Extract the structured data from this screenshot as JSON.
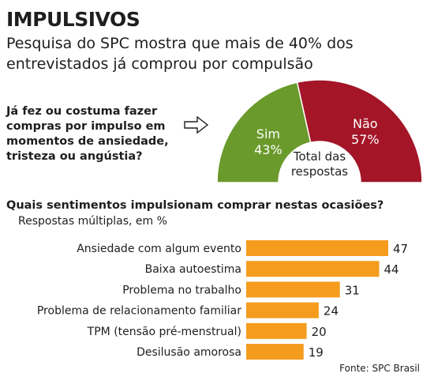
{
  "title": "IMPULSIVOS",
  "subtitle": "Pesquisa do SPC mostra que mais de 40% dos entrevistados já comprou por compulsão",
  "question1": "Já fez ou costuma fazer compras por impulso em momentos de ansiedade, tristeza ou angústia?",
  "question2": "Quais sentimentos impulsionam comprar nestas ocasiões?",
  "question2_note": "Respostas múltiplas, em %",
  "source": "Fonte: SPC Brasil",
  "colors": {
    "sim": "#6b9a2c",
    "nao": "#a31527",
    "bar": "#f59c1e"
  },
  "chart_data": [
    {
      "type": "pie",
      "style": "half-donut",
      "center_label": "Total das respostas",
      "slices": [
        {
          "label": "Sim",
          "value": 43,
          "display": "43%"
        },
        {
          "label": "Não",
          "value": 57,
          "display": "57%"
        }
      ]
    },
    {
      "type": "bar",
      "orientation": "horizontal",
      "categories": [
        "Ansiedade com algum evento",
        "Baixa autoestima",
        "Problema no trabalho",
        "Problema de relacionamento familiar",
        "TPM (tensão pré-menstrual)",
        "Desilusão amorosa"
      ],
      "values": [
        47,
        44,
        31,
        24,
        20,
        19
      ]
    }
  ]
}
